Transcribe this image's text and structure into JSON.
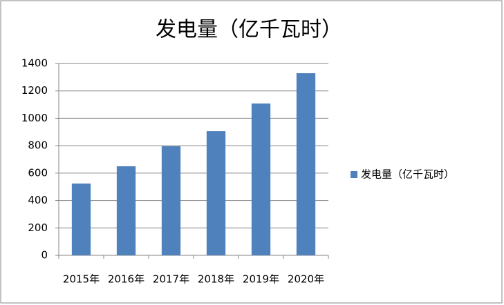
{
  "chart_data": {
    "type": "bar",
    "title": "发电量（亿千瓦时）",
    "categories": [
      "2015年",
      "2016年",
      "2017年",
      "2018年",
      "2019年",
      "2020年"
    ],
    "series": [
      {
        "name": "发电量（亿千瓦时）",
        "color": "#4f81bd",
        "values": [
          524,
          650,
          796,
          906,
          1108,
          1329
        ]
      }
    ],
    "ylim": [
      0,
      1400
    ],
    "yticks": [
      0,
      200,
      400,
      600,
      800,
      1000,
      1200,
      1400
    ],
    "grid": true,
    "legend": "right"
  }
}
